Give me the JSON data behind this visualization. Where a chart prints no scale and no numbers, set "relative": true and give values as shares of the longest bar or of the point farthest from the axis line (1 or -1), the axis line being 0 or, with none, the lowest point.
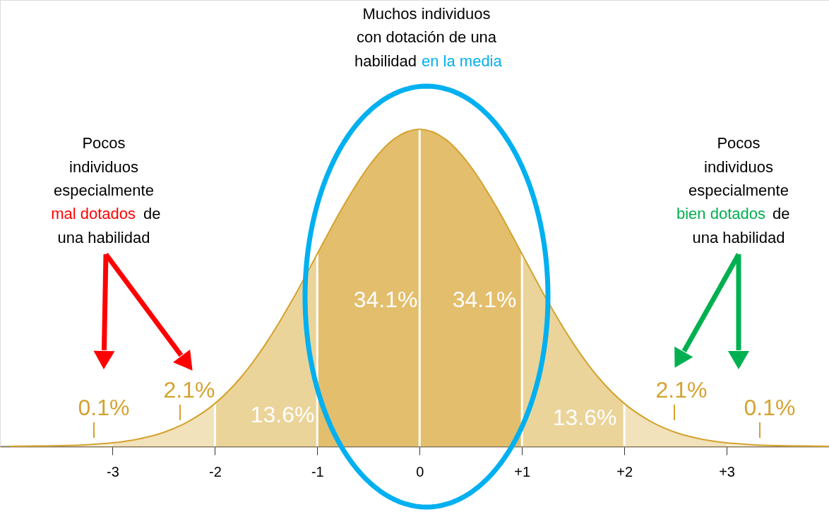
{
  "chart_data": {
    "type": "area",
    "relative": true,
    "xlim": [
      -4.1,
      4.0
    ],
    "xticks": [
      -3,
      -2,
      -1,
      0,
      {
        "value": 1,
        "label": "+1"
      },
      {
        "value": 2,
        "label": "+2"
      },
      {
        "value": 3,
        "label": "+3"
      }
    ],
    "series": [
      {
        "color": "#f7eed7",
        "x": [
          -4,
          -3.75,
          -3.5,
          -3.25,
          -3
        ],
        "values": [
          0.0,
          0.001,
          0.002,
          0.005,
          0.011
        ]
      },
      {
        "color": "#f2e2bb",
        "x": [
          -3,
          -2.75,
          -2.5,
          -2.25,
          -2
        ],
        "values": [
          0.011,
          0.023,
          0.044,
          0.08,
          0.135
        ]
      },
      {
        "color": "#ebd49a",
        "x": [
          -2,
          -1.75,
          -1.5,
          -1.25,
          -1
        ],
        "values": [
          0.135,
          0.216,
          0.325,
          0.458,
          0.607
        ]
      },
      {
        "color": "#e3be6c",
        "x": [
          -1,
          -0.75,
          -0.5,
          -0.25,
          0,
          0.25,
          0.5,
          0.75,
          1
        ],
        "values": [
          0.607,
          0.755,
          0.882,
          0.969,
          1.0,
          0.969,
          0.882,
          0.755,
          0.607
        ]
      },
      {
        "color": "#ebd49a",
        "x": [
          1,
          1.25,
          1.5,
          1.75,
          2
        ],
        "values": [
          0.607,
          0.458,
          0.325,
          0.216,
          0.135
        ]
      },
      {
        "color": "#f2e2bb",
        "x": [
          2,
          2.25,
          2.5,
          2.75,
          3
        ],
        "values": [
          0.135,
          0.08,
          0.044,
          0.023,
          0.011
        ]
      },
      {
        "color": "#f7eed7",
        "x": [
          3,
          3.25,
          3.5,
          3.75,
          4
        ],
        "values": [
          0.011,
          0.005,
          0.002,
          0.001,
          0.0
        ]
      },
      {
        "type": "line",
        "color": "#d4a22e",
        "x": [
          -4,
          -3.75,
          -3.5,
          -3.25,
          -3,
          -2.75,
          -2.5,
          -2.25,
          -2,
          -1.75,
          -1.5,
          -1.25,
          -1,
          -0.75,
          -0.5,
          -0.25,
          0,
          0.25,
          0.5,
          0.75,
          1,
          1.25,
          1.5,
          1.75,
          2,
          2.25,
          2.5,
          2.75,
          3,
          3.25,
          3.5,
          3.75,
          4
        ],
        "values": [
          0.0,
          0.001,
          0.002,
          0.005,
          0.011,
          0.023,
          0.044,
          0.08,
          0.135,
          0.216,
          0.325,
          0.458,
          0.607,
          0.755,
          0.882,
          0.969,
          1.0,
          0.969,
          0.882,
          0.755,
          0.607,
          0.458,
          0.325,
          0.216,
          0.135,
          0.08,
          0.044,
          0.023,
          0.011,
          0.005,
          0.002,
          0.001,
          0.0
        ]
      }
    ],
    "ref_lines": [
      {
        "axis": "x",
        "value": -2,
        "color": "#ffffff"
      },
      {
        "axis": "x",
        "value": -1,
        "color": "#ffffff"
      },
      {
        "axis": "x",
        "value": 0,
        "color": "#ffffff"
      },
      {
        "axis": "x",
        "value": 1,
        "color": "#ffffff"
      },
      {
        "axis": "x",
        "value": 2,
        "color": "#ffffff"
      }
    ],
    "annotations": [
      "34.1%",
      "34.1%",
      "13.6%",
      "13.6%",
      "2.1%",
      "2.1%",
      "0.1%",
      "0.1%",
      "Muchos individuos",
      "con dotación de una",
      "habilidad",
      "en la media",
      "Pocos",
      "individuos",
      "especialmente",
      "mal dotados",
      "de",
      "una habilidad",
      "Pocos",
      "individuos",
      "especialmente",
      "bien dotados",
      "de",
      "una habilidad"
    ]
  }
}
